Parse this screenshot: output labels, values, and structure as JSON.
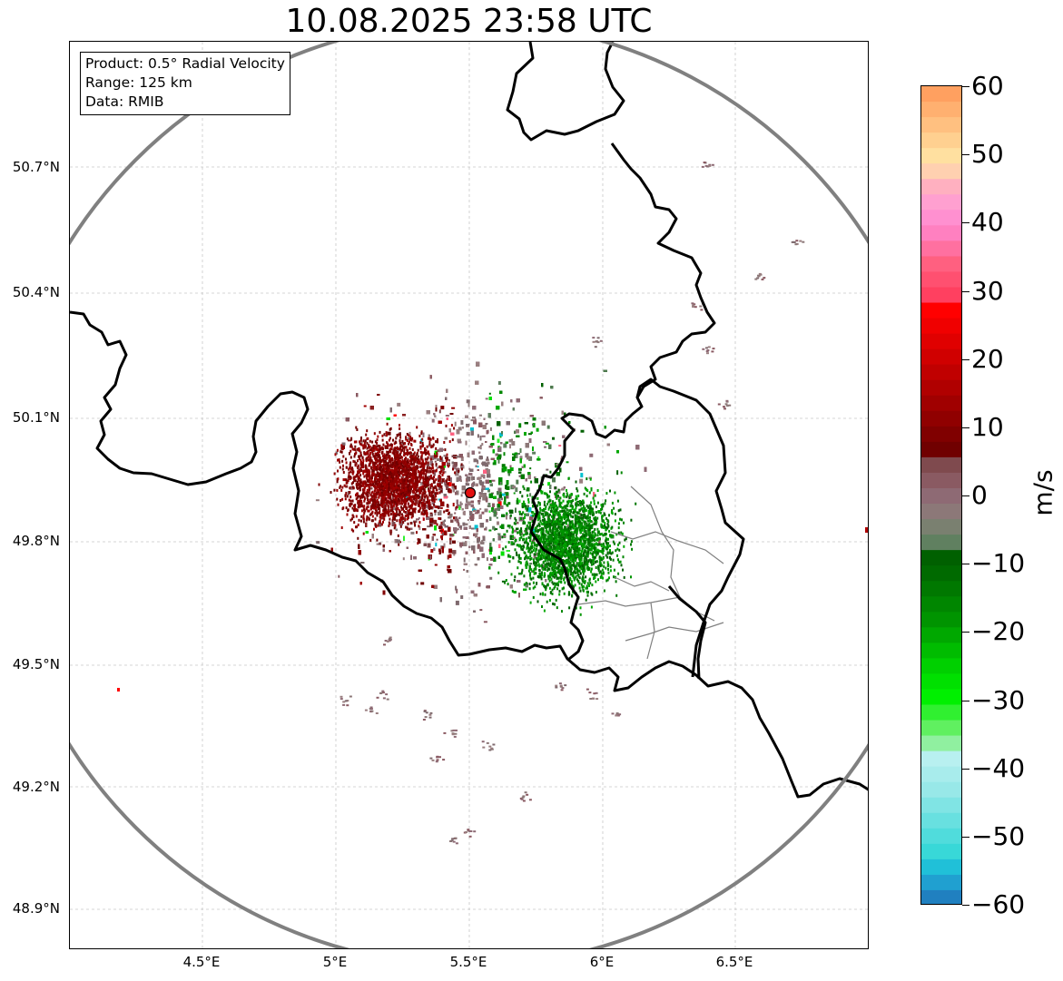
{
  "title": "10.08.2025 23:58 UTC",
  "info": {
    "product": "Product: 0.5° Radial Velocity",
    "range": "Range: 125 km",
    "data": "Data: RMIB"
  },
  "map": {
    "lat_ticks": [
      "50.7°N",
      "50.4°N",
      "50.1°N",
      "49.8°N",
      "49.5°N",
      "49.2°N",
      "48.9°N"
    ],
    "lon_ticks": [
      "4.5°E",
      "5°E",
      "5.5°E",
      "6°E",
      "6.5°E"
    ],
    "radar_site": {
      "lon": 5.5,
      "lat": 49.92,
      "marker_color": "#e01010"
    },
    "range_ring_color": "#808080",
    "gridlines": true
  },
  "colorbar": {
    "unit": "m/s",
    "ticks": [
      "60",
      "50",
      "40",
      "30",
      "20",
      "10",
      "0",
      "−10",
      "−20",
      "−30",
      "−40",
      "−50",
      "−60"
    ],
    "colors_top_to_bottom": [
      "#ffa060",
      "#ffb070",
      "#ffc080",
      "#ffd090",
      "#ffe0a0",
      "#ffd0b0",
      "#ffb0c0",
      "#ffa0d0",
      "#ff90d0",
      "#ff80c0",
      "#ff70a0",
      "#ff6080",
      "#ff5070",
      "#ff4060",
      "#ff0000",
      "#f00000",
      "#e00000",
      "#d00000",
      "#c00000",
      "#b00000",
      "#a00000",
      "#900000",
      "#800000",
      "#700000",
      "#7f4a4e",
      "#8a5a62",
      "#8e6a74",
      "#8c7878",
      "#7a8070",
      "#608060",
      "#006000",
      "#006a00",
      "#007800",
      "#008600",
      "#009400",
      "#00a800",
      "#00bc00",
      "#00d000",
      "#00e000",
      "#00f000",
      "#30f030",
      "#60f060",
      "#90f0a0",
      "#b8f0f0",
      "#a8ecec",
      "#98e8e8",
      "#80e4e4",
      "#68e0e0",
      "#50dcdc",
      "#38d8d8",
      "#20c0d8",
      "#20a0d0",
      "#2080c0"
    ]
  }
}
